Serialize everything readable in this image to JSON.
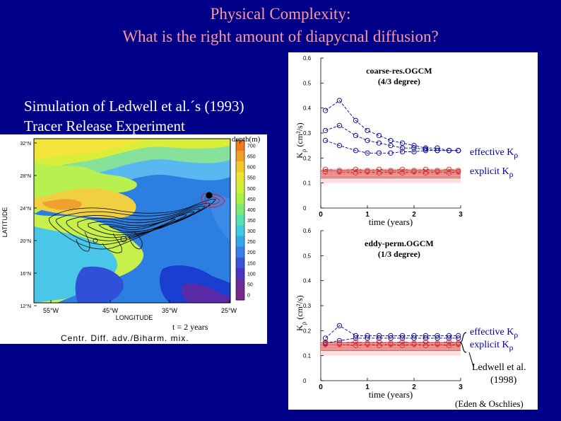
{
  "slide": {
    "title_line1": "Physical Complexity:",
    "title_line2": "What is the right amount of diapycnal diffusion?",
    "subtitle_line1": "Simulation of Ledwell et al.´s (1993)",
    "subtitle_line2": "Tracer Release Experiment"
  },
  "map": {
    "colorbar_title": "depth(m)",
    "colorbar_ticks": [
      "700",
      "650",
      "600",
      "550",
      "500",
      "450",
      "400",
      "350",
      "300",
      "250",
      "200",
      "150",
      "100",
      "50",
      "0"
    ],
    "lat_ticks": [
      "32°N",
      "28°N",
      "24°N",
      "20°N",
      "16°N",
      "12°N"
    ],
    "lon_ticks": [
      "55°W",
      "45°W",
      "35°W",
      "25°W"
    ],
    "ylabel": "LATITUDE",
    "xlabel": "LONGITUDE",
    "time_label": "t = 2 years",
    "caption": "Centr. Diff. adv./Biharm. mix."
  },
  "annotations": {
    "top_effective": "effective K",
    "top_explicit": "explicit K",
    "bottom_effective": "effective K",
    "bottom_explicit": "explicit K",
    "subscript": "ρ",
    "ledwell_line1": "Ledwell et al.",
    "ledwell_line2": "(1998)",
    "credit": "(Eden & Oschlies)"
  },
  "colors": {
    "background": "#000088",
    "title": "#ff9999",
    "effective_series": "#000099",
    "explicit_series": "#cc3333",
    "ledwell_band": "#cc0000"
  },
  "chart_data": [
    {
      "type": "line",
      "title": "coarse-res.OGCM",
      "subtitle": "(4/3 degree)",
      "xlabel": "time (years)",
      "ylabel": "K",
      "ylabel_sub": "ρ",
      "ylabel_unit": " (cm²/s)",
      "xlim": [
        0,
        3
      ],
      "ylim": [
        0,
        0.6
      ],
      "x_ticks": [
        "0",
        "1",
        "2",
        "3"
      ],
      "y_ticks": [
        "0",
        "0.1",
        "0.2",
        "0.3",
        "0.4",
        "0.5",
        "0.6"
      ],
      "x": [
        0.1,
        0.4,
        0.75,
        1.0,
        1.25,
        1.5,
        1.75,
        2.0,
        2.25,
        2.5,
        2.75,
        2.95
      ],
      "series": [
        {
          "name": "effective upper",
          "group": "effective",
          "values": [
            0.39,
            0.43,
            0.35,
            0.31,
            0.29,
            0.27,
            0.26,
            0.25,
            0.24,
            0.24,
            0.23,
            0.23
          ]
        },
        {
          "name": "effective middle",
          "group": "effective",
          "values": [
            0.31,
            0.33,
            0.29,
            0.27,
            0.26,
            0.25,
            0.24,
            0.24,
            0.235,
            0.23,
            0.23,
            0.23
          ]
        },
        {
          "name": "effective lower",
          "group": "effective",
          "values": [
            0.27,
            0.25,
            0.23,
            0.22,
            0.22,
            0.22,
            0.225,
            0.225,
            0.23,
            0.23,
            0.23,
            0.23
          ]
        },
        {
          "name": "explicit a",
          "group": "explicit",
          "values": [
            0.155,
            0.15,
            0.155,
            0.15,
            0.155,
            0.15,
            0.155,
            0.15,
            0.155,
            0.15,
            0.155,
            0.15
          ]
        },
        {
          "name": "explicit b",
          "group": "explicit",
          "values": [
            0.145,
            0.145,
            0.14,
            0.145,
            0.14,
            0.145,
            0.14,
            0.145,
            0.14,
            0.145,
            0.14,
            0.145
          ]
        }
      ],
      "ledwell_band": [
        0.1,
        0.16
      ]
    },
    {
      "type": "line",
      "title": "eddy-perm.OGCM",
      "subtitle": "(1/3 degree)",
      "xlabel": "time (years)",
      "ylabel": "K",
      "ylabel_sub": "ρ",
      "ylabel_unit": " (cm²/s)",
      "xlim": [
        0,
        3
      ],
      "ylim": [
        0,
        0.6
      ],
      "x_ticks": [
        "0",
        "1",
        "2",
        "3"
      ],
      "y_ticks": [
        "0",
        "0.1",
        "0.2",
        "0.3",
        "0.4",
        "0.5",
        "0.6"
      ],
      "x": [
        0.1,
        0.4,
        0.75,
        1.0,
        1.25,
        1.5,
        1.75,
        2.0,
        2.25,
        2.5,
        2.75,
        2.95
      ],
      "series": [
        {
          "name": "effective upper",
          "group": "effective",
          "values": [
            0.17,
            0.22,
            0.18,
            0.18,
            0.18,
            0.18,
            0.18,
            0.18,
            0.18,
            0.18,
            0.18,
            0.18
          ]
        },
        {
          "name": "effective lower",
          "group": "effective",
          "values": [
            0.15,
            0.16,
            0.17,
            0.17,
            0.17,
            0.17,
            0.17,
            0.17,
            0.17,
            0.17,
            0.17,
            0.17
          ]
        },
        {
          "name": "explicit a",
          "group": "explicit",
          "values": [
            0.155,
            0.15,
            0.155,
            0.15,
            0.155,
            0.15,
            0.155,
            0.15,
            0.155,
            0.15,
            0.155,
            0.15
          ]
        },
        {
          "name": "explicit b",
          "group": "explicit",
          "values": [
            0.145,
            0.145,
            0.14,
            0.145,
            0.14,
            0.145,
            0.14,
            0.145,
            0.14,
            0.145,
            0.14,
            0.145
          ]
        }
      ],
      "ledwell_band": [
        0.1,
        0.16
      ]
    }
  ]
}
